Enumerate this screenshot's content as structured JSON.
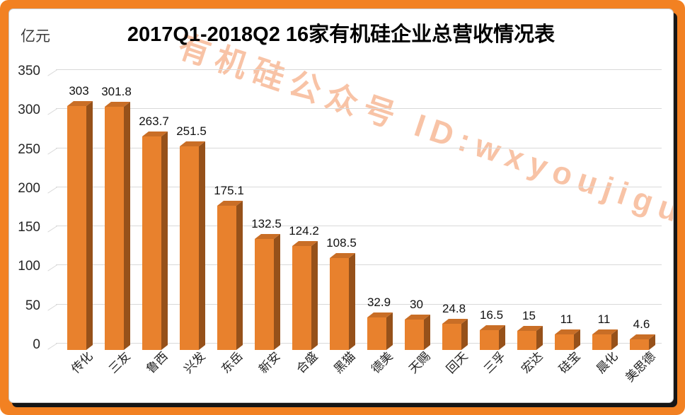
{
  "title": "2017Q1-2018Q2  16家有机硅企业总营收情况表",
  "y_unit_label": "亿元",
  "watermark_text": "有机硅公众号 ID:wxyoujigui",
  "colors": {
    "frame_orange": "#F28122",
    "bar_front": "#E8812D",
    "bar_side": "#96511A",
    "bar_top": "#C96E26",
    "gridline": "#D9D9D9",
    "watermark": "rgba(242,146,93,0.55)",
    "panel_shadow": "#161616"
  },
  "chart_data": {
    "type": "bar",
    "title": "2017Q1-2018Q2  16家有机硅企业总营收情况表",
    "xlabel": "",
    "ylabel": "亿元",
    "ylim": [
      0,
      350
    ],
    "yticks": [
      0,
      50,
      100,
      150,
      200,
      250,
      300,
      350
    ],
    "grid": true,
    "legend_position": "none",
    "style": "3d-column",
    "categories": [
      "传化",
      "三友",
      "鲁西",
      "兴发",
      "东岳",
      "新安",
      "合盛",
      "黑猫",
      "德美",
      "天赐",
      "回天",
      "三孚",
      "宏达",
      "硅宝",
      "晨化",
      "美思德"
    ],
    "values": [
      303,
      301.8,
      263.7,
      251.5,
      175.1,
      132.5,
      124.2,
      108.5,
      32.9,
      30,
      24.8,
      16.5,
      15,
      11,
      11,
      4.6
    ],
    "value_labels": [
      "303",
      "301.8",
      "263.7",
      "251.5",
      "175.1",
      "132.5",
      "124.2",
      "108.5",
      "32.9",
      "30",
      "24.8",
      "16.5",
      "15",
      "11",
      "11",
      "4.6"
    ]
  }
}
